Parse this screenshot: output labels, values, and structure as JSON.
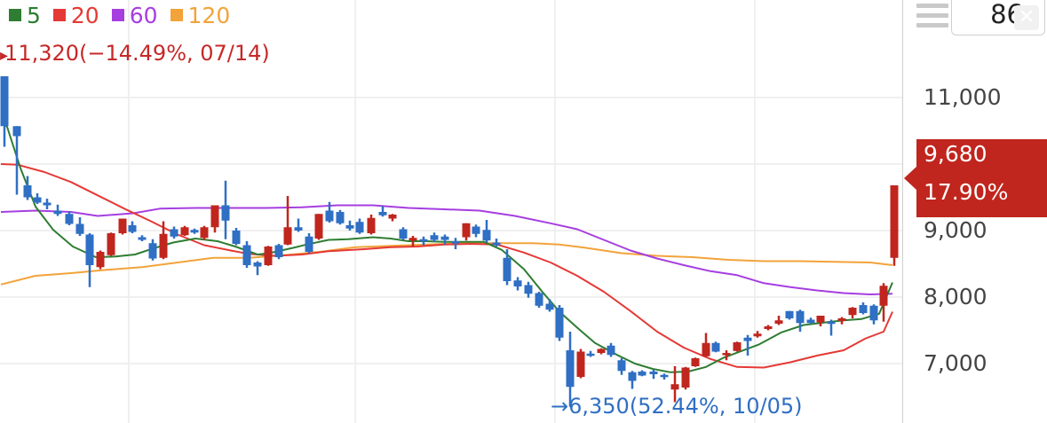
{
  "chart_data": {
    "type": "candlestick",
    "legend": [
      {
        "label": "5",
        "color": "#2e7d32"
      },
      {
        "label": "20",
        "color": "#e53935"
      },
      {
        "label": "60",
        "color": "#a63ee0"
      },
      {
        "label": "120",
        "color": "#f2a33a"
      }
    ],
    "y_ticks": [
      "11,000",
      "9,000",
      "8,000",
      "7,000"
    ],
    "y_tick_values": [
      11000,
      9000,
      8000,
      7000
    ],
    "high_annotation": "11,320(−14.49%, 07/14)",
    "low_annotation": "6,350(52.44%, 10/05)",
    "current_price": "9,680",
    "current_change": "17.90%",
    "colors": {
      "up": "#c0261e",
      "down": "#2f6fc4"
    },
    "ma_values": {
      "ma5": [
        [
          1,
          10640
        ],
        [
          8,
          10560
        ],
        [
          23,
          9940
        ],
        [
          40,
          9360
        ],
        [
          60,
          9010
        ],
        [
          82,
          8760
        ],
        [
          108,
          8600
        ],
        [
          130,
          8610
        ],
        [
          152,
          8640
        ],
        [
          172,
          8730
        ],
        [
          195,
          8820
        ],
        [
          220,
          8880
        ],
        [
          245,
          8840
        ],
        [
          265,
          8760
        ],
        [
          290,
          8640
        ],
        [
          303,
          8660
        ],
        [
          330,
          8740
        ],
        [
          345,
          8790
        ],
        [
          370,
          8860
        ],
        [
          392,
          8870
        ],
        [
          420,
          8900
        ],
        [
          440,
          8880
        ],
        [
          460,
          8840
        ],
        [
          480,
          8840
        ],
        [
          500,
          8830
        ],
        [
          520,
          8830
        ],
        [
          545,
          8830
        ],
        [
          565,
          8710
        ],
        [
          590,
          8420
        ],
        [
          610,
          8090
        ],
        [
          630,
          7780
        ],
        [
          650,
          7540
        ],
        [
          670,
          7310
        ],
        [
          695,
          7130
        ],
        [
          715,
          7000
        ],
        [
          735,
          6920
        ],
        [
          755,
          6870
        ],
        [
          775,
          6880
        ],
        [
          795,
          6950
        ],
        [
          815,
          7090
        ],
        [
          835,
          7190
        ],
        [
          855,
          7290
        ],
        [
          880,
          7470
        ],
        [
          905,
          7580
        ],
        [
          930,
          7620
        ],
        [
          950,
          7650
        ],
        [
          970,
          7670
        ],
        [
          990,
          7750
        ],
        [
          1005,
          8220
        ]
      ],
      "ma20": [
        [
          1,
          10000
        ],
        [
          20,
          9990
        ],
        [
          50,
          9880
        ],
        [
          80,
          9730
        ],
        [
          110,
          9530
        ],
        [
          140,
          9330
        ],
        [
          170,
          9140
        ],
        [
          200,
          8940
        ],
        [
          230,
          8780
        ],
        [
          260,
          8700
        ],
        [
          280,
          8650
        ],
        [
          310,
          8620
        ],
        [
          340,
          8640
        ],
        [
          370,
          8690
        ],
        [
          410,
          8720
        ],
        [
          440,
          8750
        ],
        [
          470,
          8760
        ],
        [
          500,
          8790
        ],
        [
          530,
          8800
        ],
        [
          560,
          8790
        ],
        [
          590,
          8670
        ],
        [
          620,
          8520
        ],
        [
          650,
          8320
        ],
        [
          680,
          8080
        ],
        [
          710,
          7790
        ],
        [
          740,
          7480
        ],
        [
          770,
          7240
        ],
        [
          800,
          7070
        ],
        [
          830,
          6950
        ],
        [
          860,
          6940
        ],
        [
          890,
          7020
        ],
        [
          920,
          7120
        ],
        [
          950,
          7200
        ],
        [
          975,
          7380
        ],
        [
          995,
          7480
        ],
        [
          1005,
          7780
        ]
      ],
      "ma60": [
        [
          1,
          9280
        ],
        [
          40,
          9300
        ],
        [
          80,
          9280
        ],
        [
          110,
          9220
        ],
        [
          150,
          9260
        ],
        [
          180,
          9330
        ],
        [
          220,
          9340
        ],
        [
          260,
          9340
        ],
        [
          300,
          9340
        ],
        [
          340,
          9350
        ],
        [
          380,
          9380
        ],
        [
          420,
          9380
        ],
        [
          460,
          9340
        ],
        [
          500,
          9320
        ],
        [
          540,
          9300
        ],
        [
          580,
          9220
        ],
        [
          620,
          9110
        ],
        [
          650,
          9020
        ],
        [
          680,
          8860
        ],
        [
          710,
          8700
        ],
        [
          740,
          8580
        ],
        [
          770,
          8480
        ],
        [
          800,
          8390
        ],
        [
          830,
          8330
        ],
        [
          860,
          8210
        ],
        [
          890,
          8150
        ],
        [
          920,
          8100
        ],
        [
          950,
          8060
        ],
        [
          980,
          8040
        ],
        [
          1005,
          8050
        ]
      ],
      "ma120": [
        [
          1,
          8190
        ],
        [
          40,
          8320
        ],
        [
          80,
          8360
        ],
        [
          120,
          8410
        ],
        [
          160,
          8450
        ],
        [
          200,
          8520
        ],
        [
          240,
          8590
        ],
        [
          280,
          8590
        ],
        [
          320,
          8630
        ],
        [
          360,
          8680
        ],
        [
          400,
          8750
        ],
        [
          440,
          8770
        ],
        [
          480,
          8790
        ],
        [
          520,
          8810
        ],
        [
          560,
          8810
        ],
        [
          600,
          8810
        ],
        [
          630,
          8790
        ],
        [
          660,
          8740
        ],
        [
          700,
          8660
        ],
        [
          740,
          8620
        ],
        [
          780,
          8600
        ],
        [
          820,
          8560
        ],
        [
          860,
          8540
        ],
        [
          900,
          8540
        ],
        [
          940,
          8530
        ],
        [
          980,
          8520
        ],
        [
          1005,
          8480
        ]
      ]
    },
    "candles": [
      [
        5,
        10570,
        11320,
        11320,
        10260,
        "down"
      ],
      [
        19,
        10420,
        10570,
        10570,
        9540,
        "down"
      ],
      [
        31,
        9680,
        9500,
        9820,
        9460,
        "down"
      ],
      [
        42,
        9500,
        9420,
        9560,
        9400,
        "down"
      ],
      [
        53,
        9420,
        9380,
        9480,
        9320,
        "down"
      ],
      [
        65,
        9300,
        9250,
        9390,
        9220,
        "down"
      ],
      [
        78,
        9250,
        9100,
        9290,
        9080,
        "down"
      ],
      [
        90,
        9100,
        8950,
        9200,
        8920,
        "down"
      ],
      [
        101,
        8940,
        8480,
        8960,
        8150,
        "down"
      ],
      [
        113,
        8450,
        8680,
        8700,
        8420,
        "up"
      ],
      [
        125,
        8630,
        8960,
        8970,
        8620,
        "up"
      ],
      [
        138,
        8960,
        9180,
        9180,
        8940,
        "up"
      ],
      [
        149,
        9080,
        8980,
        9140,
        8960,
        "down"
      ],
      [
        160,
        8900,
        8860,
        8930,
        8840,
        "down"
      ],
      [
        172,
        8810,
        8580,
        8870,
        8550,
        "down"
      ],
      [
        184,
        8590,
        8950,
        9140,
        8570,
        "up"
      ],
      [
        196,
        9020,
        8910,
        9060,
        8880,
        "down"
      ],
      [
        208,
        8930,
        9050,
        9070,
        8920,
        "up"
      ],
      [
        219,
        9010,
        8970,
        9030,
        8950,
        "down"
      ],
      [
        230,
        8890,
        9050,
        9070,
        8860,
        "up"
      ],
      [
        242,
        9050,
        9380,
        9380,
        8970,
        "up"
      ],
      [
        254,
        9380,
        9150,
        9750,
        8870,
        "down"
      ],
      [
        266,
        9000,
        8800,
        9040,
        8780,
        "down"
      ],
      [
        278,
        8780,
        8480,
        8840,
        8440,
        "down"
      ],
      [
        290,
        8520,
        8460,
        8540,
        8330,
        "down"
      ],
      [
        302,
        8480,
        8760,
        8770,
        8470,
        "up"
      ],
      [
        314,
        8780,
        8600,
        8800,
        8570,
        "down"
      ],
      [
        324,
        8790,
        9050,
        9520,
        8780,
        "up"
      ],
      [
        336,
        9050,
        9000,
        9180,
        8980,
        "down"
      ],
      [
        348,
        8910,
        8680,
        8960,
        8660,
        "down"
      ],
      [
        359,
        8880,
        9250,
        9250,
        8860,
        "up"
      ],
      [
        371,
        9300,
        9140,
        9430,
        9120,
        "down"
      ],
      [
        383,
        9280,
        9110,
        9310,
        9090,
        "down"
      ],
      [
        394,
        9080,
        9030,
        9150,
        9000,
        "down"
      ],
      [
        405,
        9130,
        8970,
        9180,
        8950,
        "down"
      ],
      [
        418,
        8960,
        9190,
        9240,
        8940,
        "up"
      ],
      [
        431,
        9280,
        9230,
        9370,
        9210,
        "down"
      ],
      [
        442,
        9180,
        9240,
        9250,
        9140,
        "up"
      ],
      [
        454,
        9020,
        8880,
        9050,
        8860,
        "down"
      ],
      [
        465,
        8850,
        8890,
        8920,
        8760,
        "up"
      ],
      [
        477,
        8870,
        8870,
        8910,
        8780,
        "down"
      ],
      [
        489,
        8930,
        8860,
        8970,
        8830,
        "down"
      ],
      [
        501,
        8910,
        8860,
        8940,
        8790,
        "down"
      ],
      [
        513,
        8840,
        8840,
        8890,
        8720,
        "down"
      ],
      [
        525,
        8900,
        9110,
        9110,
        8850,
        "up"
      ],
      [
        536,
        9060,
        8950,
        9090,
        8900,
        "down"
      ],
      [
        548,
        9010,
        8850,
        9160,
        8820,
        "down"
      ],
      [
        559,
        8820,
        8780,
        8880,
        8760,
        "down"
      ],
      [
        571,
        8590,
        8240,
        8720,
        8180,
        "down"
      ],
      [
        583,
        8250,
        8160,
        8300,
        8100,
        "down"
      ],
      [
        595,
        8180,
        8050,
        8230,
        7990,
        "down"
      ],
      [
        607,
        8060,
        7870,
        8080,
        7840,
        "down"
      ],
      [
        619,
        7900,
        7810,
        7970,
        7780,
        "down"
      ],
      [
        630,
        7840,
        7390,
        7880,
        7340,
        "down"
      ],
      [
        642,
        7200,
        6650,
        7480,
        6350,
        "down"
      ],
      [
        654,
        6800,
        7180,
        7220,
        6780,
        "up"
      ],
      [
        665,
        7150,
        7120,
        7190,
        7100,
        "down"
      ],
      [
        677,
        7160,
        7220,
        7230,
        7140,
        "up"
      ],
      [
        688,
        7270,
        7130,
        7310,
        7100,
        "down"
      ],
      [
        700,
        7050,
        6890,
        7080,
        6830,
        "down"
      ],
      [
        712,
        6870,
        6740,
        6890,
        6620,
        "down"
      ],
      [
        723,
        6880,
        6820,
        6900,
        6810,
        "down"
      ],
      [
        736,
        6880,
        6840,
        6910,
        6770,
        "down"
      ],
      [
        748,
        6830,
        6800,
        6850,
        6760,
        "down"
      ],
      [
        760,
        6690,
        6610,
        6960,
        6420,
        "up"
      ],
      [
        772,
        6640,
        6940,
        6950,
        6610,
        "up"
      ],
      [
        783,
        6960,
        7080,
        7090,
        6950,
        "up"
      ],
      [
        795,
        7110,
        7310,
        7460,
        7100,
        "up"
      ],
      [
        806,
        7310,
        7180,
        7330,
        7170,
        "down"
      ],
      [
        818,
        7150,
        7160,
        7200,
        7050,
        "up"
      ],
      [
        830,
        7190,
        7320,
        7330,
        7180,
        "up"
      ],
      [
        842,
        7340,
        7390,
        7430,
        7120,
        "down"
      ],
      [
        853,
        7410,
        7450,
        7490,
        7390,
        "up"
      ],
      [
        865,
        7520,
        7560,
        7580,
        7500,
        "up"
      ],
      [
        877,
        7600,
        7650,
        7720,
        7580,
        "up"
      ],
      [
        889,
        7680,
        7790,
        7790,
        7660,
        "down"
      ],
      [
        901,
        7790,
        7610,
        7810,
        7480,
        "down"
      ],
      [
        913,
        7610,
        7660,
        7690,
        7600,
        "down"
      ],
      [
        924,
        7720,
        7620,
        7720,
        7560,
        "up"
      ],
      [
        936,
        7630,
        7610,
        7660,
        7420,
        "down"
      ],
      [
        948,
        7680,
        7640,
        7700,
        7590,
        "up"
      ],
      [
        960,
        7730,
        7840,
        7850,
        7680,
        "up"
      ],
      [
        972,
        7760,
        7880,
        7920,
        7740,
        "down"
      ],
      [
        984,
        7870,
        7650,
        7890,
        7590,
        "down"
      ],
      [
        995,
        7870,
        8170,
        8210,
        7630,
        "up"
      ],
      [
        1007,
        8590,
        9680,
        9680,
        8470,
        "up"
      ]
    ]
  }
}
